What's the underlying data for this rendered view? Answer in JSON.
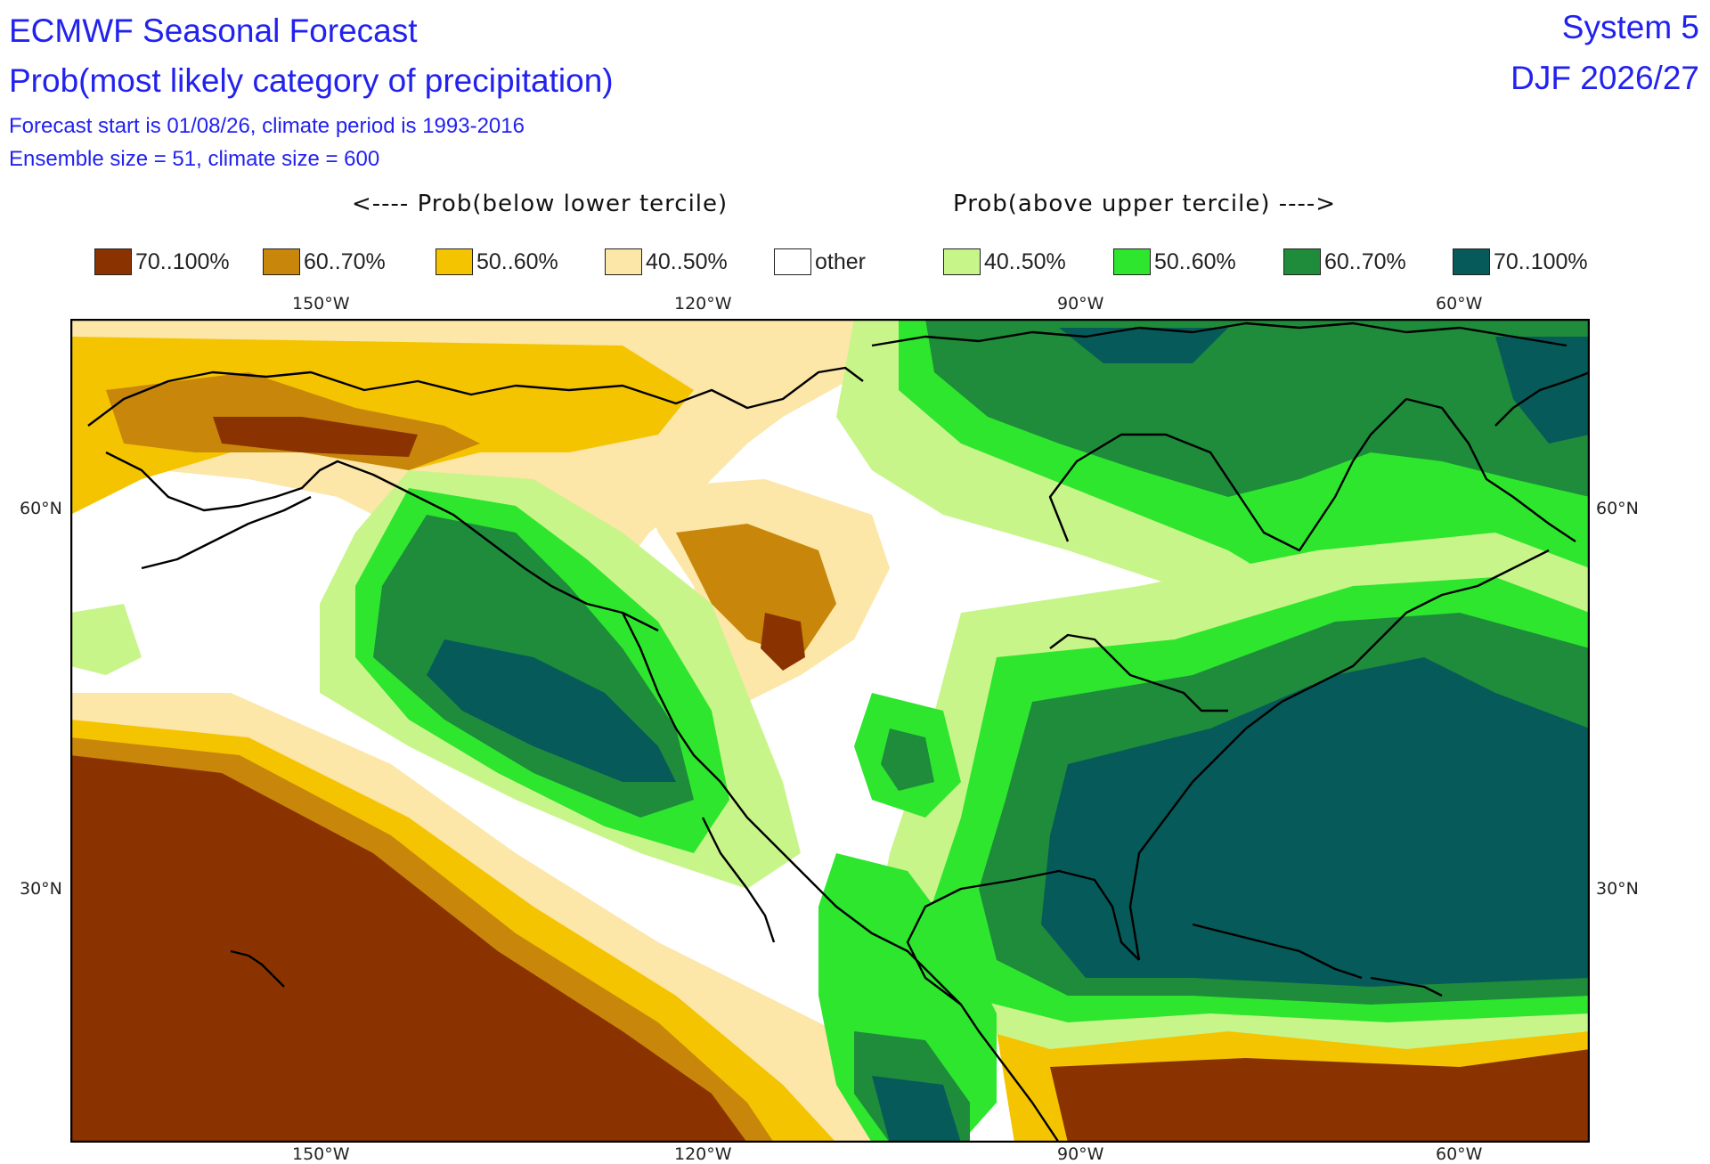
{
  "header": {
    "title": "ECMWF Seasonal Forecast",
    "subtitle": "Prob(most likely category of precipitation)",
    "forecast_info": "Forecast start is 01/08/26, climate period is 1993-2016",
    "ensemble_info": "Ensemble size = 51, climate size = 600",
    "system": "System 5",
    "period": "DJF 2026/27"
  },
  "legend": {
    "below_heading": "<---- Prob(below lower tercile)",
    "above_heading": "Prob(above upper tercile) ---->",
    "items": [
      {
        "label": "70..100%",
        "color": "#8b3300"
      },
      {
        "label": "60..70%",
        "color": "#c8860a"
      },
      {
        "label": "50..60%",
        "color": "#f5c400"
      },
      {
        "label": "40..50%",
        "color": "#fce6a8"
      },
      {
        "label": "other",
        "color": "#ffffff"
      },
      {
        "label": "40..50%",
        "color": "#c8f58a"
      },
      {
        "label": "50..60%",
        "color": "#2ee62e"
      },
      {
        "label": "60..70%",
        "color": "#1e8c3a"
      },
      {
        "label": "70..100%",
        "color": "#075a5a"
      }
    ]
  },
  "axes": {
    "lon_labels": [
      "150°W",
      "120°W",
      "90°W",
      "60°W"
    ],
    "lat_labels": [
      "60°N",
      "30°N"
    ]
  }
}
